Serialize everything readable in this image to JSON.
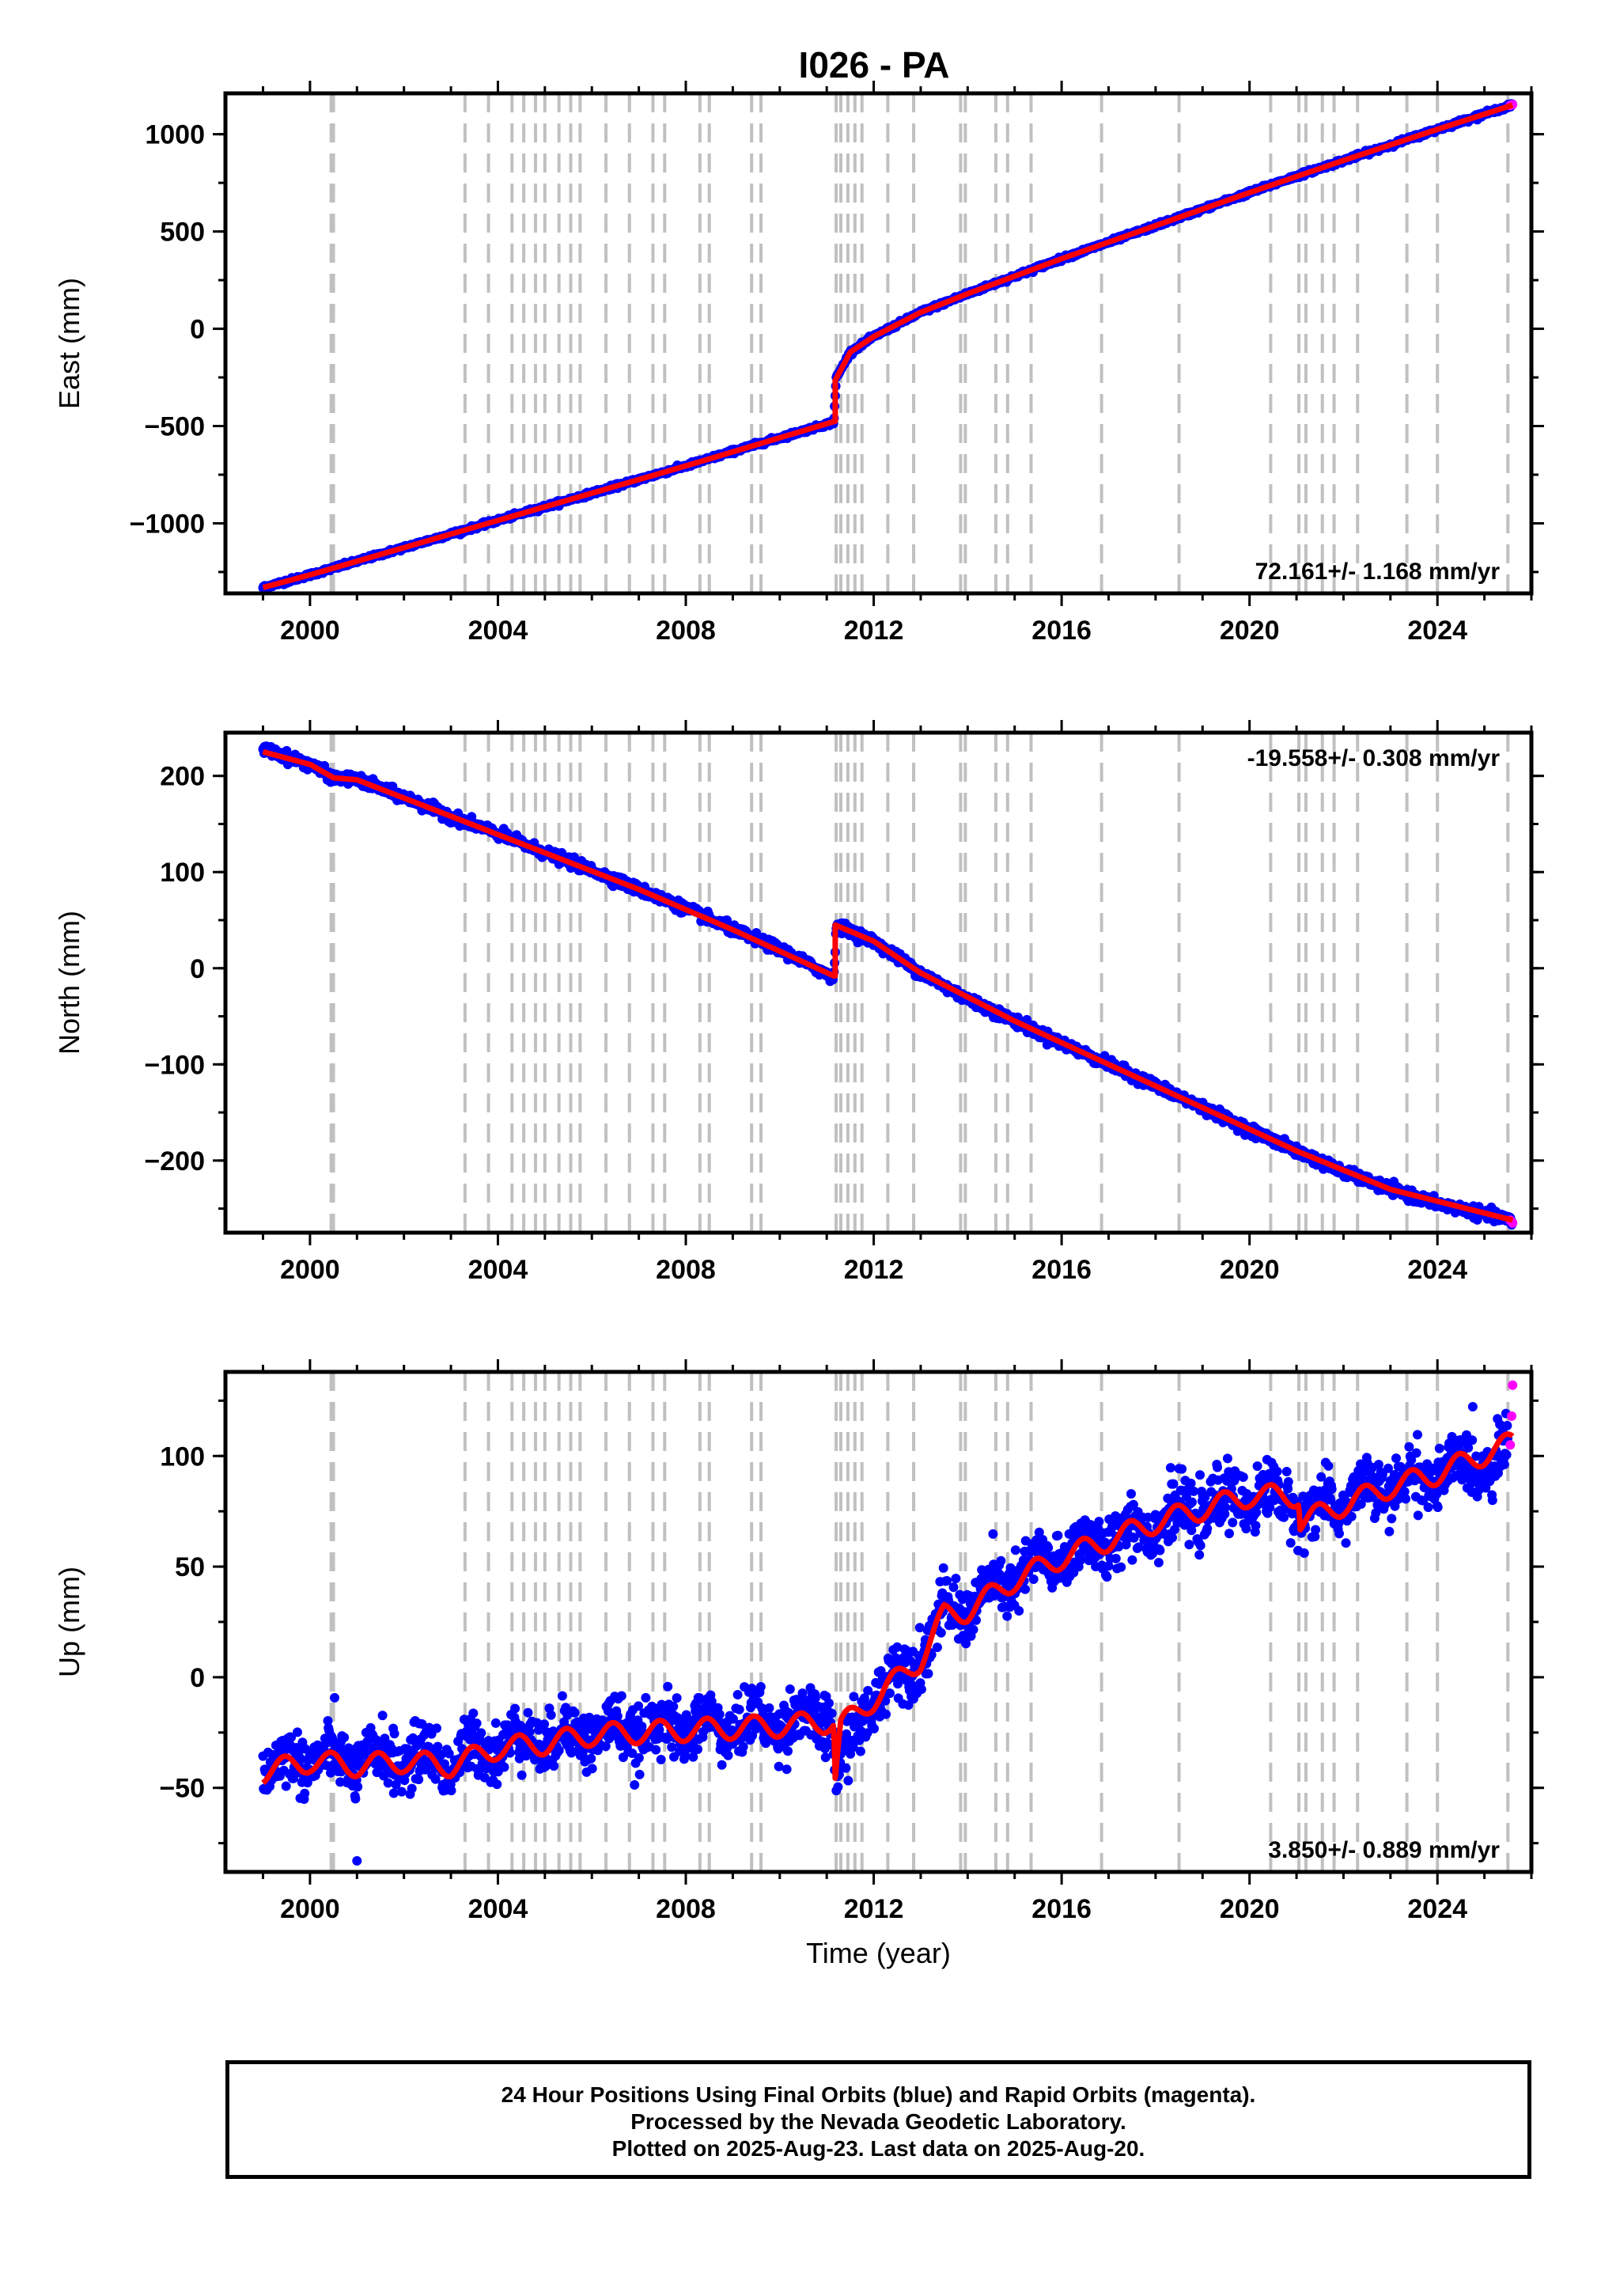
{
  "title": "I026 - PA",
  "colors": {
    "final_orbits": "#0000ff",
    "rapid_orbits": "#ff00ff",
    "model_fit": "#ff0000",
    "equipment_change_lines": "#c0c0c0",
    "frame": "#000000"
  },
  "footer": {
    "line1": "24 Hour Positions Using Final Orbits (blue) and Rapid Orbits (magenta).",
    "line2": "Processed by the Nevada Geodetic Laboratory.",
    "line3": "Plotted on 2025-Aug-23. Last data on 2025-Aug-20."
  },
  "chart_data": [
    {
      "type": "scatter",
      "panel": "east",
      "ylabel": "East (mm)",
      "xlabel": "",
      "xlim": [
        1998.2,
        2026.0
      ],
      "ylim": [
        -1360,
        1210
      ],
      "x_ticks": [
        2000,
        2004,
        2008,
        2012,
        2016,
        2020,
        2024
      ],
      "y_ticks": [
        -1000,
        -500,
        0,
        500,
        1000
      ],
      "y_tick_labels": [
        "−1000",
        "−500",
        "0",
        "500",
        "1000"
      ],
      "rate_label": "72.161+/- 1.168 mm/yr",
      "rate_position": "bottom-right",
      "series": [
        {
          "name": "Final Orbits",
          "color": "#0000ff",
          "points": [
            [
              1999.0,
              -1330
            ],
            [
              2000.0,
              -1265
            ],
            [
              2001.0,
              -1195
            ],
            [
              2002.0,
              -1125
            ],
            [
              2003.0,
              -1055
            ],
            [
              2004.0,
              -985
            ],
            [
              2005.0,
              -915
            ],
            [
              2006.0,
              -845
            ],
            [
              2007.0,
              -775
            ],
            [
              2008.0,
              -705
            ],
            [
              2009.0,
              -630
            ],
            [
              2010.0,
              -560
            ],
            [
              2011.15,
              -480
            ],
            [
              2011.2,
              -255
            ],
            [
              2011.5,
              -120
            ],
            [
              2012.0,
              -40
            ],
            [
              2013.0,
              85
            ],
            [
              2014.0,
              180
            ],
            [
              2015.0,
              270
            ],
            [
              2016.0,
              360
            ],
            [
              2017.0,
              445
            ],
            [
              2018.0,
              530
            ],
            [
              2019.0,
              615
            ],
            [
              2020.0,
              700
            ],
            [
              2021.0,
              785
            ],
            [
              2022.0,
              865
            ],
            [
              2023.0,
              945
            ],
            [
              2024.0,
              1025
            ],
            [
              2025.0,
              1105
            ],
            [
              2025.6,
              1150
            ]
          ]
        },
        {
          "name": "Rapid Orbits",
          "color": "#ff00ff",
          "points": [
            [
              2025.55,
              1148
            ],
            [
              2025.6,
              1152
            ]
          ]
        }
      ],
      "model": {
        "color": "#ff0000",
        "points": [
          [
            1999.0,
            -1330
          ],
          [
            2000.0,
            -1265
          ],
          [
            2002.0,
            -1125
          ],
          [
            2004.0,
            -985
          ],
          [
            2006.0,
            -845
          ],
          [
            2008.0,
            -705
          ],
          [
            2010.0,
            -560
          ],
          [
            2011.18,
            -475
          ],
          [
            2011.18,
            -265
          ],
          [
            2011.5,
            -120
          ],
          [
            2012.0,
            -40
          ],
          [
            2013.0,
            85
          ],
          [
            2014.0,
            180
          ],
          [
            2016.0,
            360
          ],
          [
            2018.0,
            530
          ],
          [
            2020.0,
            700
          ],
          [
            2022.0,
            865
          ],
          [
            2024.0,
            1025
          ],
          [
            2025.6,
            1150
          ]
        ]
      }
    },
    {
      "type": "scatter",
      "panel": "north",
      "ylabel": "North (mm)",
      "xlabel": "",
      "xlim": [
        1998.2,
        2026.0
      ],
      "ylim": [
        -275,
        245
      ],
      "x_ticks": [
        2000,
        2004,
        2008,
        2012,
        2016,
        2020,
        2024
      ],
      "y_ticks": [
        -200,
        -100,
        0,
        100,
        200
      ],
      "y_tick_labels": [
        "−200",
        "−100",
        "0",
        "100",
        "200"
      ],
      "rate_label": "-19.558+/- 0.308 mm/yr",
      "rate_position": "top-right",
      "series": [
        {
          "name": "Final Orbits",
          "color": "#0000ff",
          "points": [
            [
              1999.0,
              228
            ],
            [
              2000.0,
              212
            ],
            [
              2000.5,
              198
            ],
            [
              2001.0,
              196
            ],
            [
              2002.0,
              178
            ],
            [
              2003.0,
              158
            ],
            [
              2004.0,
              140
            ],
            [
              2005.0,
              120
            ],
            [
              2006.0,
              102
            ],
            [
              2007.0,
              82
            ],
            [
              2008.0,
              62
            ],
            [
              2009.0,
              40
            ],
            [
              2010.0,
              20
            ],
            [
              2011.15,
              -10
            ],
            [
              2011.2,
              45
            ],
            [
              2012.0,
              28
            ],
            [
              2013.0,
              -5
            ],
            [
              2014.0,
              -32
            ],
            [
              2015.0,
              -55
            ],
            [
              2016.0,
              -78
            ],
            [
              2017.0,
              -100
            ],
            [
              2018.0,
              -122
            ],
            [
              2019.0,
              -145
            ],
            [
              2020.0,
              -168
            ],
            [
              2021.0,
              -190
            ],
            [
              2022.0,
              -212
            ],
            [
              2023.0,
              -230
            ],
            [
              2024.0,
              -245
            ],
            [
              2025.6,
              -262
            ]
          ]
        },
        {
          "name": "Rapid Orbits",
          "color": "#ff00ff",
          "points": [
            [
              2025.55,
              -262
            ],
            [
              2025.6,
              -265
            ]
          ]
        }
      ],
      "model": {
        "color": "#ff0000",
        "points": [
          [
            1999.0,
            225
          ],
          [
            2000.0,
            212
          ],
          [
            2000.5,
            198
          ],
          [
            2001.0,
            196
          ],
          [
            2003.0,
            158
          ],
          [
            2005.0,
            120
          ],
          [
            2007.0,
            82
          ],
          [
            2009.0,
            40
          ],
          [
            2011.15,
            -8
          ],
          [
            2011.18,
            -8
          ],
          [
            2011.18,
            45
          ],
          [
            2012.0,
            28
          ],
          [
            2013.0,
            -5
          ],
          [
            2015.0,
            -55
          ],
          [
            2017.0,
            -100
          ],
          [
            2019.0,
            -145
          ],
          [
            2021.0,
            -190
          ],
          [
            2023.0,
            -230
          ],
          [
            2025.6,
            -262
          ]
        ]
      }
    },
    {
      "type": "scatter",
      "panel": "up",
      "ylabel": "Up (mm)",
      "xlabel": "Time (year)",
      "xlim": [
        1998.2,
        2026.0
      ],
      "ylim": [
        -88,
        138
      ],
      "x_ticks": [
        2000,
        2004,
        2008,
        2012,
        2016,
        2020,
        2024
      ],
      "y_ticks": [
        -50,
        0,
        50,
        100
      ],
      "y_tick_labels": [
        "−50",
        "0",
        "50",
        "100"
      ],
      "rate_label": "3.850+/- 0.889 mm/yr",
      "rate_position": "bottom-right",
      "series": [
        {
          "name": "Final Orbits",
          "color": "#0000ff",
          "points": [
            [
              1999.0,
              -42
            ],
            [
              2000.0,
              -36
            ],
            [
              2001.0,
              -38
            ],
            [
              2002.0,
              -36
            ],
            [
              2003.0,
              -38
            ],
            [
              2004.0,
              -30
            ],
            [
              2005.0,
              -28
            ],
            [
              2006.0,
              -25
            ],
            [
              2007.0,
              -24
            ],
            [
              2008.0,
              -22
            ],
            [
              2009.0,
              -22
            ],
            [
              2010.0,
              -20
            ],
            [
              2011.1,
              -18
            ],
            [
              2011.2,
              -45
            ],
            [
              2012.0,
              -8
            ],
            [
              2013.0,
              10
            ],
            [
              2013.5,
              28
            ],
            [
              2014.0,
              32
            ],
            [
              2015.0,
              45
            ],
            [
              2016.0,
              55
            ],
            [
              2017.0,
              62
            ],
            [
              2018.0,
              70
            ],
            [
              2019.0,
              76
            ],
            [
              2020.0,
              82
            ],
            [
              2021.0,
              80
            ],
            [
              2021.1,
              72
            ],
            [
              2022.0,
              80
            ],
            [
              2023.0,
              86
            ],
            [
              2024.0,
              92
            ],
            [
              2025.5,
              100
            ]
          ]
        },
        {
          "name": "Rapid Orbits",
          "color": "#ff00ff",
          "points": [
            [
              2025.55,
              105
            ],
            [
              2025.58,
              118
            ],
            [
              2025.6,
              132
            ]
          ]
        }
      ],
      "outliers": [
        [
          2001.0,
          -83
        ]
      ],
      "model": {
        "color": "#ff0000",
        "points": [
          [
            1999.0,
            -43
          ],
          [
            2000.0,
            -38
          ],
          [
            2001.0,
            -40
          ],
          [
            2002.0,
            -38
          ],
          [
            2003.0,
            -40
          ],
          [
            2004.0,
            -32
          ],
          [
            2005.0,
            -30
          ],
          [
            2006.0,
            -26
          ],
          [
            2007.0,
            -25
          ],
          [
            2008.0,
            -24
          ],
          [
            2009.0,
            -23
          ],
          [
            2010.0,
            -22
          ],
          [
            2011.15,
            -20
          ],
          [
            2011.18,
            -45
          ],
          [
            2011.3,
            -22
          ],
          [
            2012.0,
            -10
          ],
          [
            2013.0,
            8
          ],
          [
            2013.5,
            28
          ],
          [
            2014.0,
            30
          ],
          [
            2015.0,
            44
          ],
          [
            2016.0,
            54
          ],
          [
            2017.0,
            62
          ],
          [
            2018.0,
            70
          ],
          [
            2019.0,
            76
          ],
          [
            2020.0,
            82
          ],
          [
            2021.05,
            82
          ],
          [
            2021.08,
            70
          ],
          [
            2022.0,
            78
          ],
          [
            2023.0,
            86
          ],
          [
            2024.0,
            92
          ],
          [
            2025.6,
            106
          ]
        ]
      }
    }
  ],
  "equipment_change_years": [
    2000.45,
    2000.5,
    2003.3,
    2003.8,
    2004.3,
    2004.55,
    2004.8,
    2005.0,
    2005.3,
    2005.55,
    2005.75,
    2006.3,
    2006.8,
    2007.3,
    2007.55,
    2008.3,
    2008.5,
    2009.4,
    2009.6,
    2011.2,
    2011.3,
    2011.45,
    2011.6,
    2011.75,
    2012.3,
    2012.85,
    2013.85,
    2013.95,
    2014.6,
    2014.85,
    2015.35,
    2016.85,
    2018.5,
    2020.45,
    2021.05,
    2021.2,
    2021.55,
    2021.8,
    2022.3,
    2023.35,
    2024.0,
    2025.5
  ]
}
